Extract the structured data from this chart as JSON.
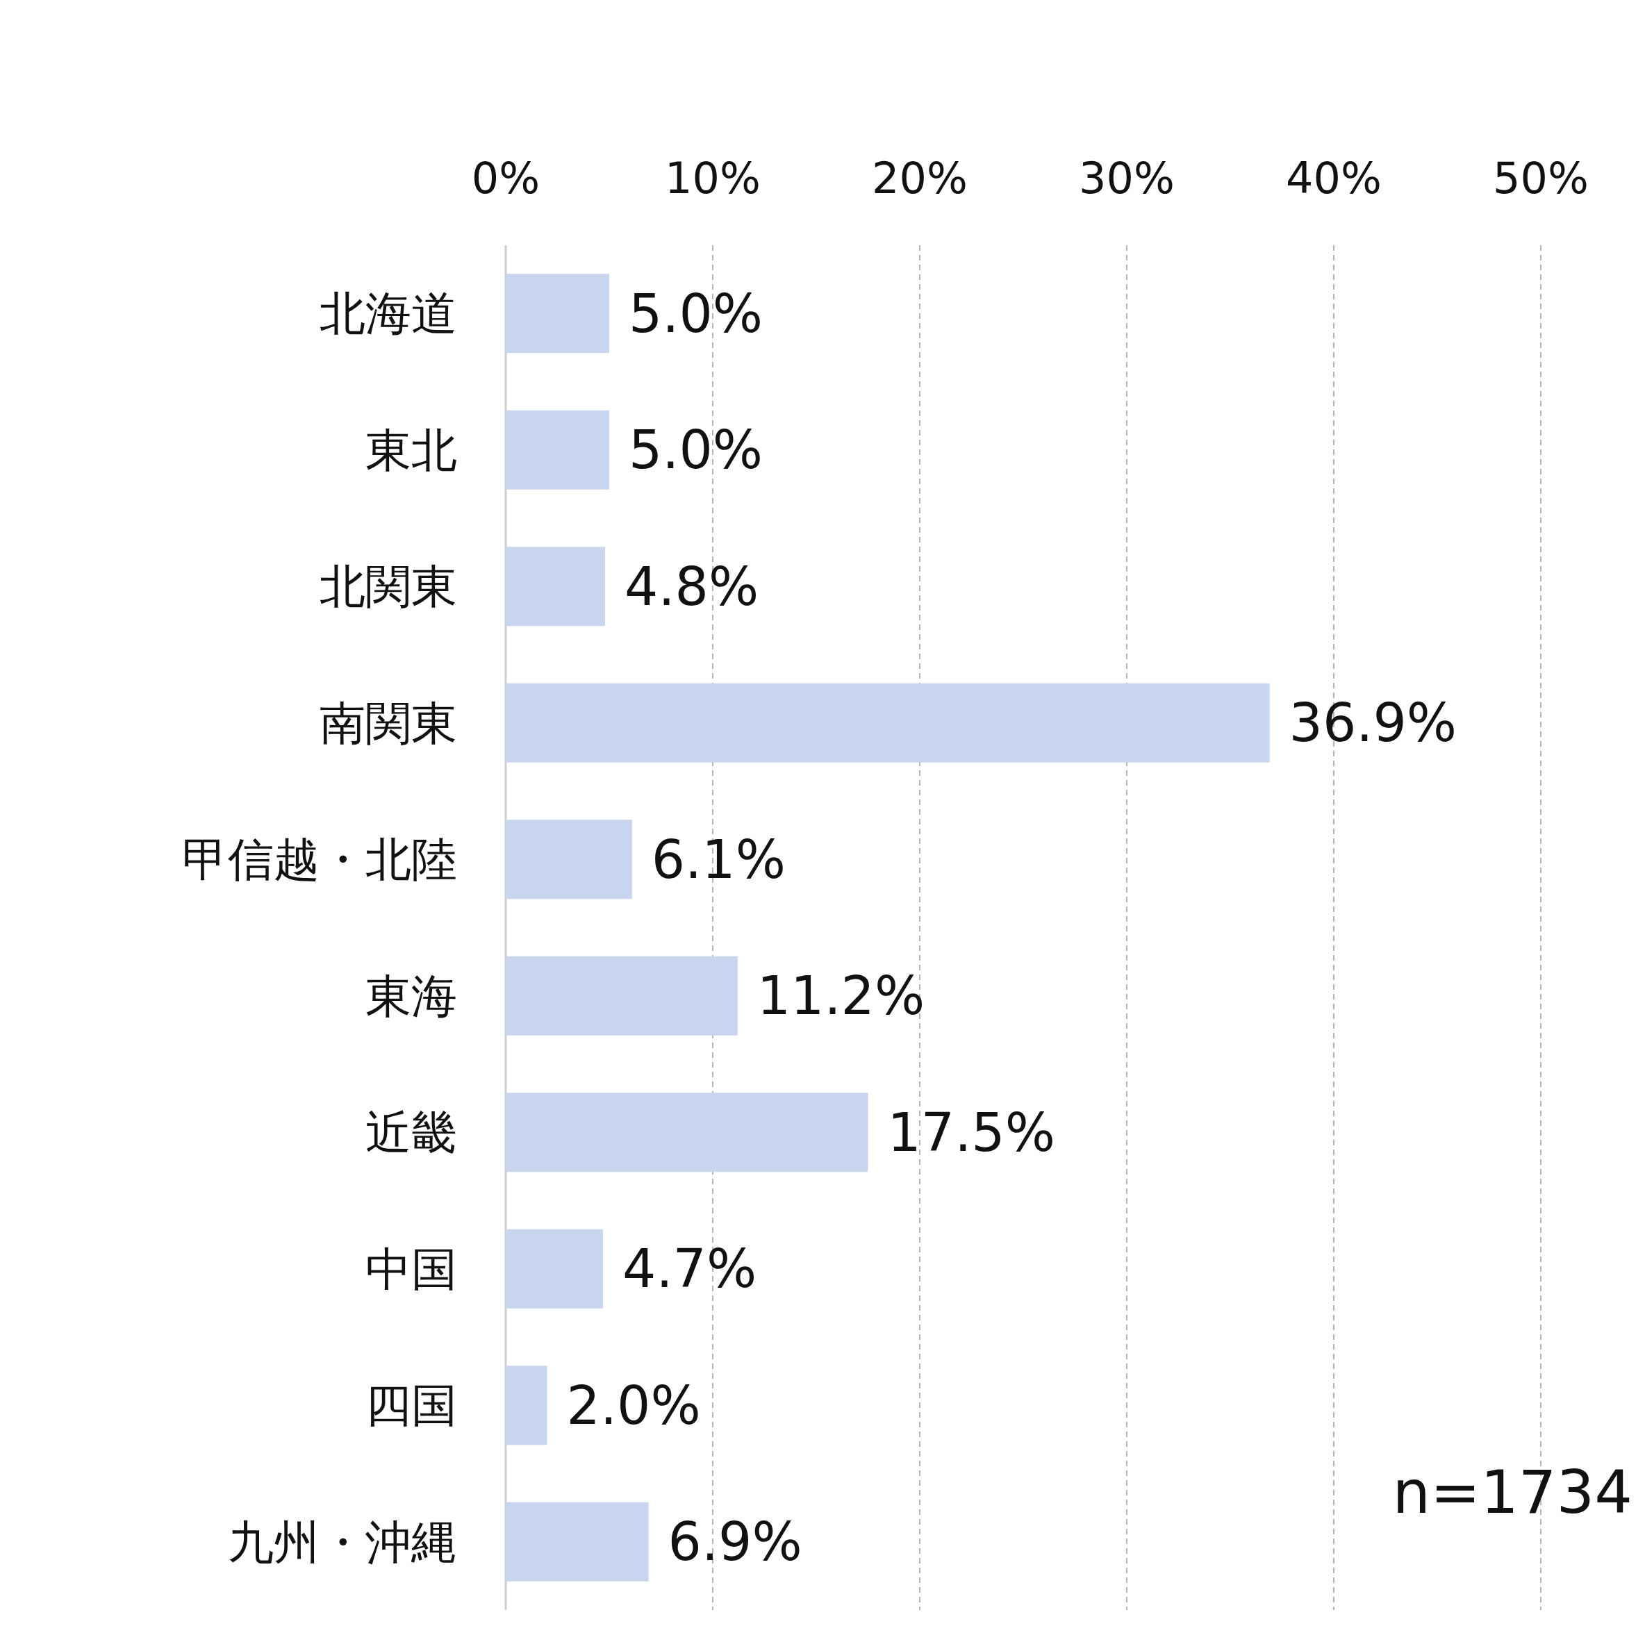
{
  "chart_data": {
    "type": "bar",
    "orientation": "horizontal",
    "categories": [
      "北海道",
      "東北",
      "北関東",
      "南関東",
      "甲信越・北陸",
      "東海",
      "近畿",
      "中国",
      "四国",
      "九州・沖縄"
    ],
    "values": [
      5.0,
      5.0,
      4.8,
      36.9,
      6.1,
      11.2,
      17.5,
      4.7,
      2.0,
      6.9
    ],
    "value_labels": [
      "5.0%",
      "5.0%",
      "4.8%",
      "36.9%",
      "6.1%",
      "11.2%",
      "17.5%",
      "4.7%",
      "2.0%",
      "6.9%"
    ],
    "color": "#c8d5ee",
    "xlim": [
      0,
      50
    ],
    "xticks": [
      {
        "value": 0,
        "label": "0%"
      },
      {
        "value": 10,
        "label": "10%"
      },
      {
        "value": 20,
        "label": "20%"
      },
      {
        "value": 30,
        "label": "30%"
      },
      {
        "value": 40,
        "label": "40%"
      },
      {
        "value": 50,
        "label": "50%"
      }
    ],
    "grid": "x",
    "annotations": [
      "n=1734"
    ]
  }
}
